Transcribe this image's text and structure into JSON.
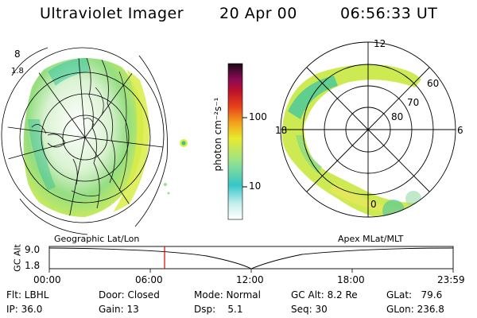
{
  "header": {
    "title": "Ultraviolet Imager",
    "date": "20 Apr 00",
    "time": "06:56:33 UT"
  },
  "colorbar": {
    "label": "photon cm⁻²s⁻¹",
    "ticks": [
      "100",
      "10"
    ],
    "scale": "log"
  },
  "polar_plot": {
    "mlt_labels": [
      "12",
      "18",
      "6",
      "0"
    ],
    "mlat_labels": [
      "60",
      "70",
      "80"
    ]
  },
  "map_caption": "Geographic Lat/Lon",
  "polar_caption": "Apex MLat/MLT",
  "altitude_plot": {
    "ylabel": "GC Alt",
    "y_ticks": [
      "9.0",
      "1.8"
    ],
    "x_ticks": [
      "00:00",
      "06:00",
      "12:00",
      "18:00",
      "23:59"
    ],
    "current_marker_time": "06:56:33"
  },
  "info": {
    "filter": "Flt: LBHL",
    "ip": "IP: 36.0",
    "door": "Door: Closed",
    "gain": "Gain: 13",
    "mode": "Mode: Normal",
    "dsp": "Dsp:    5.1",
    "gc_alt": "GC Alt: 8.2 Re",
    "seq": "Seq: 30",
    "glat": "GLat:   79.6",
    "glon": "GLon: 236.8"
  }
}
